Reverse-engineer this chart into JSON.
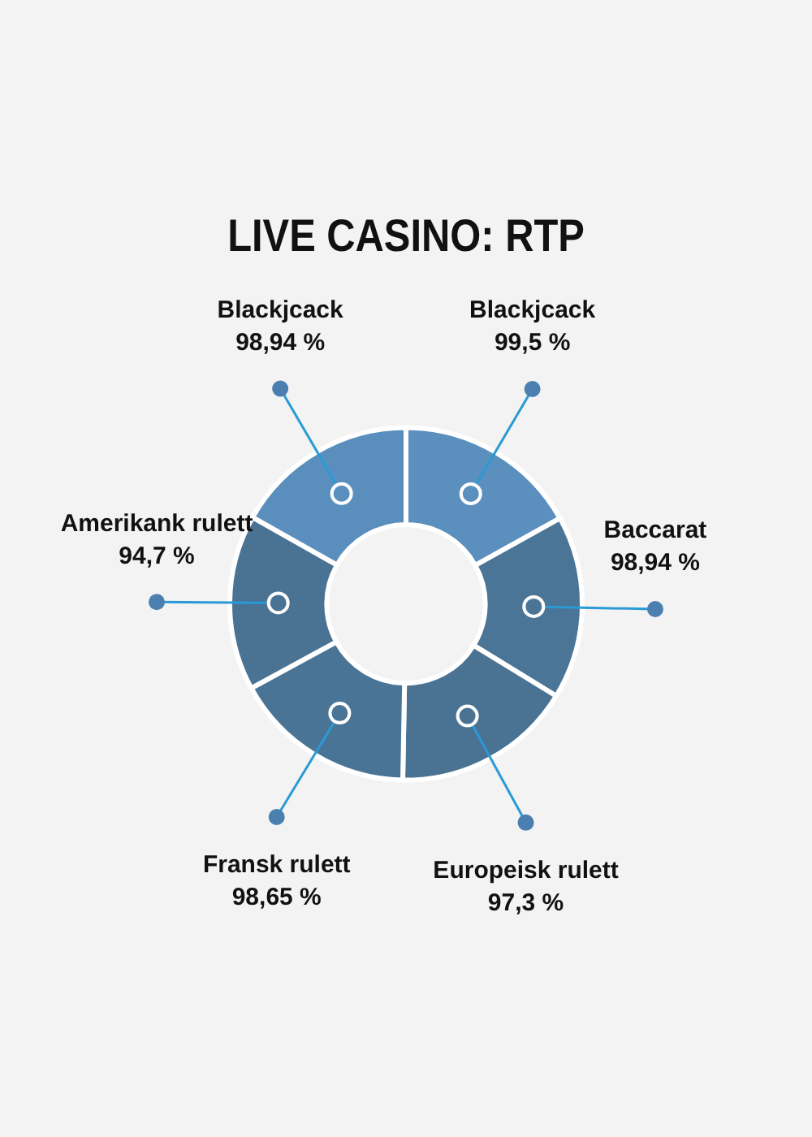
{
  "chart_data": {
    "type": "donut",
    "title": "LIVE CASINO: RTP",
    "categories": [
      "Blackjcack",
      "Baccarat",
      "Europeisk rulett",
      "Fransk rulett",
      "Amerikank rulett",
      "Blackjcack"
    ],
    "values": [
      99.5,
      98.94,
      97.3,
      98.65,
      94.7,
      98.94
    ],
    "value_labels": [
      "99,5 %",
      "98,94 %",
      "97,3 %",
      "98,65 %",
      "94,7 %",
      "98,94 %"
    ],
    "colors": [
      "#5b8fbd",
      "#4b7597",
      "#4a7393",
      "#4a7496",
      "#4a7293",
      "#5a8fbd"
    ],
    "legend": false
  }
}
